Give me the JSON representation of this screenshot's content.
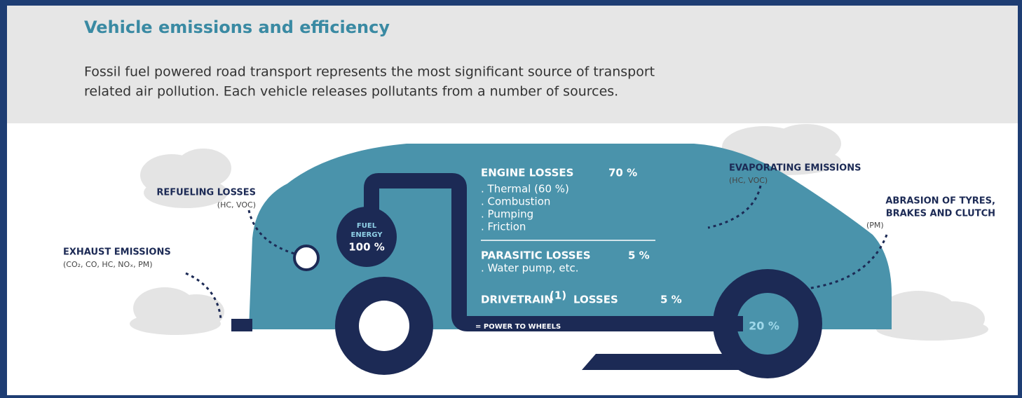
{
  "header": {
    "title": "Vehicle emissions and efficiency",
    "description": [
      "Fossil fuel powered road transport represents the most significant source of transport",
      "related air pollution. Each vehicle releases pollutants from a number of sources."
    ]
  },
  "labels": {
    "refueling": {
      "title": "REFUELING LOSSES",
      "detail": "(HC, VOC)"
    },
    "exhaust": {
      "title": "EXHAUST EMISSIONS",
      "detail": "(CO₂, CO, HC, NOₓ, PM)"
    },
    "evaporating": {
      "title": "EVAPORATING EMISSIONS",
      "detail": "(HC, VOC)"
    },
    "abrasion": {
      "title": [
        "ABRASION OF TYRES,",
        "BRAKES AND CLUTCH"
      ],
      "detail": "(PM)"
    }
  },
  "fuel": {
    "label": [
      "FUEL",
      "ENERGY"
    ],
    "value": "100 %"
  },
  "engine": {
    "title": "ENGINE LOSSES",
    "value": "70 %",
    "items": [
      ". Thermal (60 %)",
      ". Combustion",
      ". Pumping",
      ". Friction"
    ]
  },
  "parasitic": {
    "title": "PARASITIC LOSSES",
    "value": "5 %",
    "items": [
      ". Water pump, etc."
    ]
  },
  "drivetrain": {
    "title": "DRIVETRAIN",
    "note": "(1)",
    "suffix": "LOSSES",
    "value": "5 %"
  },
  "wheels": {
    "label": "= POWER TO WHEELS",
    "value": "20 %"
  }
}
